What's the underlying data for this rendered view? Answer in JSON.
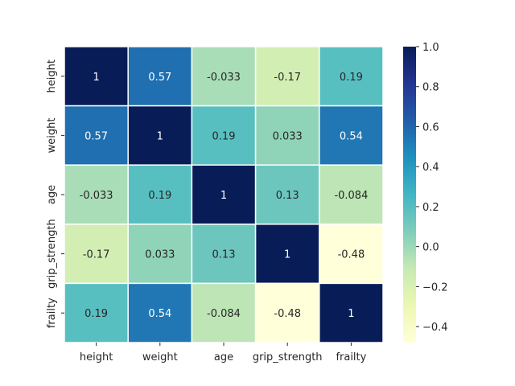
{
  "chart_data": {
    "type": "heatmap",
    "title": "",
    "xlabel": "",
    "ylabel": "",
    "categories_x": [
      "height",
      "weight",
      "age",
      "grip_strength",
      "frailty"
    ],
    "categories_y": [
      "height",
      "weight",
      "age",
      "grip_strength",
      "frailty"
    ],
    "values": [
      [
        1,
        0.57,
        -0.033,
        -0.17,
        0.19
      ],
      [
        0.57,
        1,
        0.19,
        0.033,
        0.54
      ],
      [
        -0.033,
        0.19,
        1,
        0.13,
        -0.084
      ],
      [
        -0.17,
        0.033,
        0.13,
        1,
        -0.48
      ],
      [
        0.19,
        0.54,
        -0.084,
        -0.48,
        1
      ]
    ],
    "annotations": [
      [
        "1",
        "0.57",
        "-0.033",
        "-0.17",
        "0.19"
      ],
      [
        "0.57",
        "1",
        "0.19",
        "0.033",
        "0.54"
      ],
      [
        "-0.033",
        "0.19",
        "1",
        "0.13",
        "-0.084"
      ],
      [
        "-0.17",
        "0.033",
        "0.13",
        "1",
        "-0.48"
      ],
      [
        "0.19",
        "0.54",
        "-0.084",
        "-0.48",
        "1"
      ]
    ],
    "colormap": "YlGnBu",
    "colorbar": {
      "range": [
        -0.48,
        1.0
      ],
      "ticks": [
        1.0,
        0.8,
        0.6,
        0.4,
        0.2,
        0.0,
        -0.2,
        -0.4
      ],
      "tick_labels": [
        "1.0",
        "0.8",
        "0.6",
        "0.4",
        "0.2",
        "0.0",
        "−0.2",
        "−0.4"
      ]
    },
    "cell_border_color": "#ffffff",
    "legend": "colorbar-right",
    "grid": false
  }
}
